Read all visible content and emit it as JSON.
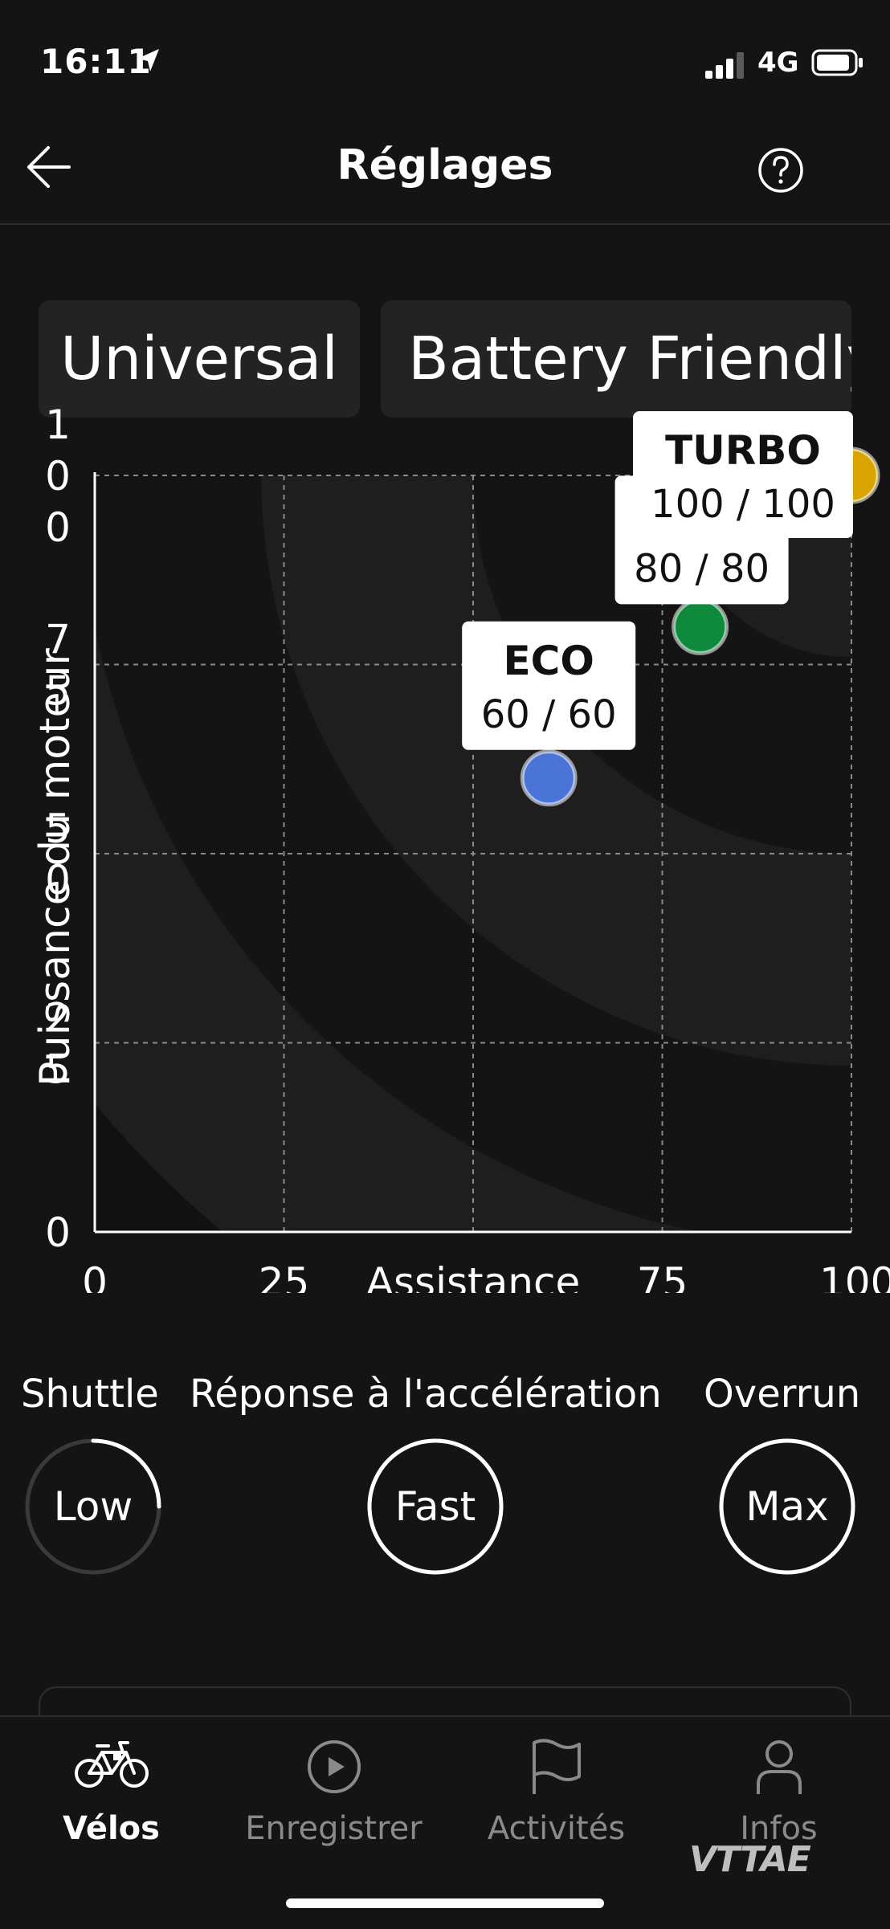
{
  "status_bar": {
    "time": "16:11",
    "network": "4G"
  },
  "header": {
    "title": "Réglages"
  },
  "chips": [
    {
      "label": "Universal"
    },
    {
      "label": "Battery Friendly"
    }
  ],
  "chart_data": {
    "type": "scatter",
    "xlabel": "Assistance",
    "ylabel": "Puissance du moteur",
    "xlim": [
      0,
      100
    ],
    "ylim": [
      0,
      100
    ],
    "x_ticks": [
      "0",
      "25",
      "Assistance",
      "75",
      "100"
    ],
    "y_ticks": [
      "0",
      "25",
      "50",
      "75",
      "100"
    ],
    "grid": true,
    "points": [
      {
        "mode": "ECO",
        "x": 60,
        "y": 60,
        "label": "60 / 60",
        "color": "#4a74d6"
      },
      {
        "mode": "",
        "x": 80,
        "y": 80,
        "label": "80 / 80",
        "color": "#0f8a3c"
      },
      {
        "mode": "TURBO",
        "x": 100,
        "y": 100,
        "label": "100 / 100",
        "color": "#d9a400"
      }
    ]
  },
  "settings": {
    "shuttle": {
      "label": "Shuttle",
      "value": "Low",
      "level": 0.25
    },
    "acceleration": {
      "label": "Réponse à l'accélération",
      "value": "Fast",
      "level": 1.0
    },
    "overrun": {
      "label": "Overrun",
      "value": "Max",
      "level": 1.0
    }
  },
  "tabs": [
    {
      "label": "Vélos",
      "icon": "bike-icon",
      "active": true
    },
    {
      "label": "Enregistrer",
      "icon": "play-icon",
      "active": false
    },
    {
      "label": "Activités",
      "icon": "flag-icon",
      "active": false
    },
    {
      "label": "Infos",
      "icon": "person-icon",
      "active": false
    }
  ],
  "watermark": "VTTAE"
}
